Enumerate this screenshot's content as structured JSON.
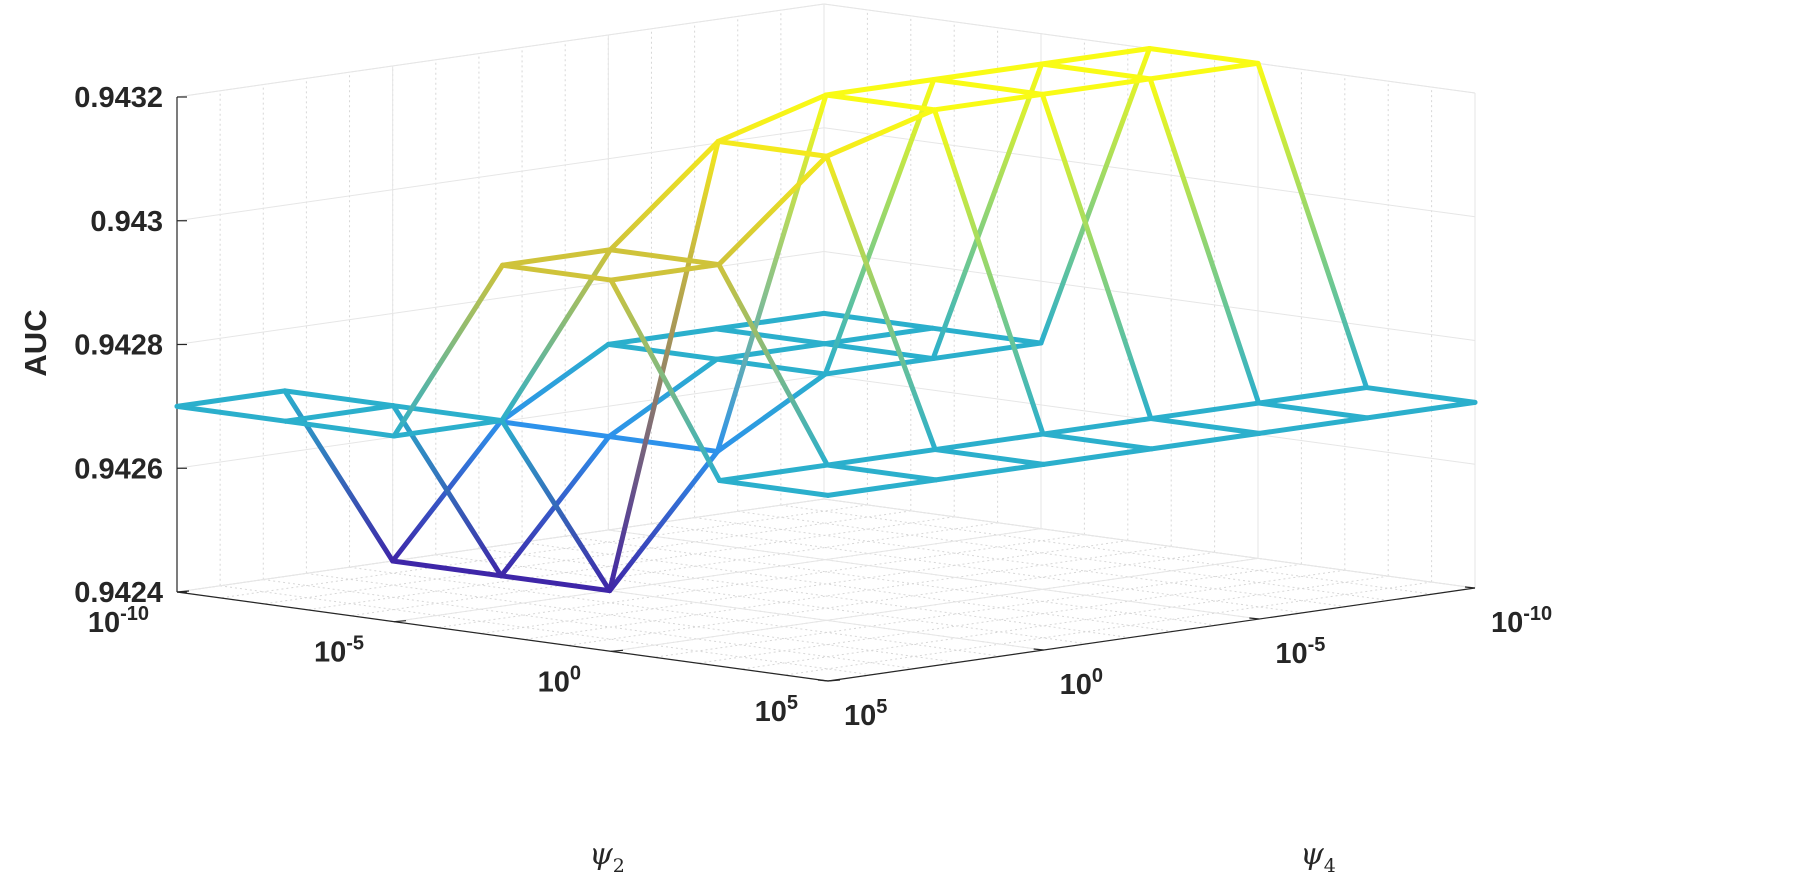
{
  "chart_data": {
    "type": "surface-mesh",
    "zlabel": "AUC",
    "xlabel": "ψ",
    "xlabel_sub": "2",
    "ylabel": "ψ",
    "ylabel_sub": "4",
    "zlim": [
      0.9424,
      0.9432
    ],
    "z_ticks": [
      "0.9424",
      "0.9426",
      "0.9428",
      "0.943",
      "0.9432"
    ],
    "x_ticks": [
      {
        "base": "10",
        "exp": "-10"
      },
      {
        "base": "10",
        "exp": "-5"
      },
      {
        "base": "10",
        "exp": "0"
      },
      {
        "base": "10",
        "exp": "5"
      }
    ],
    "y_ticks": [
      {
        "base": "10",
        "exp": "-10"
      },
      {
        "base": "10",
        "exp": "-5"
      },
      {
        "base": "10",
        "exp": "0"
      },
      {
        "base": "10",
        "exp": "5"
      }
    ],
    "x_exponents": [
      -10,
      -7.5,
      -5,
      -2.5,
      0,
      2.5,
      5
    ],
    "y_exponents": [
      -10,
      -7.5,
      -5,
      -2.5,
      0,
      2.5,
      5
    ],
    "grid": true,
    "colormap": [
      "#3e26a8",
      "#2e87f7",
      "#2ab5c6",
      "#85c75d",
      "#e8c12e",
      "#f9fb15"
    ],
    "values": [
      [
        0.9427,
        0.9427,
        0.9427,
        0.9426,
        0.9424,
        0.9427,
        0.9427
      ],
      [
        0.9427,
        0.9427,
        0.9427,
        0.9426,
        0.9424,
        0.9427,
        0.9427
      ],
      [
        0.9427,
        0.9427,
        0.9427,
        0.9426,
        0.9424,
        0.9427,
        0.9427
      ],
      [
        0.9432,
        0.9432,
        0.9432,
        0.9432,
        0.94315,
        0.943,
        0.943
      ],
      [
        0.9432,
        0.9432,
        0.9432,
        0.9432,
        0.94315,
        0.943,
        0.943
      ],
      [
        0.9427,
        0.9427,
        0.9427,
        0.9427,
        0.9427,
        0.9427,
        0.9427
      ],
      [
        0.9427,
        0.9427,
        0.9427,
        0.9427,
        0.9427,
        0.9427,
        0.9427
      ]
    ]
  }
}
